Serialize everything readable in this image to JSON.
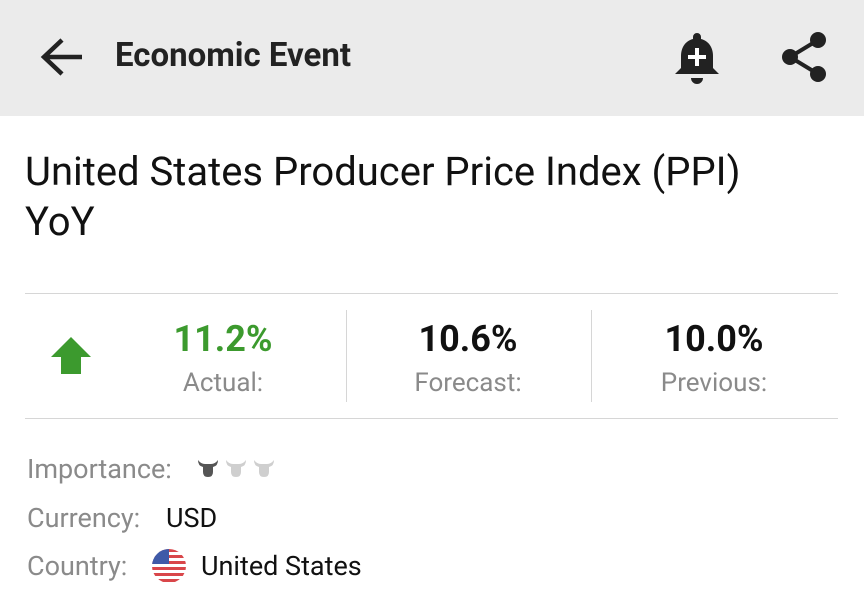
{
  "header": {
    "title": "Economic Event"
  },
  "event": {
    "title_line1": "United States Producer Price Index (PPI)",
    "title_line2": "YoY"
  },
  "stats": [
    {
      "value": "11.2%",
      "label": "Actual:"
    },
    {
      "value": "10.6%",
      "label": "Forecast:"
    },
    {
      "value": "10.0%",
      "label": "Previous:"
    }
  ],
  "details": {
    "importance_label": "Importance:",
    "importance": {
      "level": 1,
      "of": 3
    },
    "currency_label": "Currency:",
    "currency": "USD",
    "country_label": "Country:",
    "country": "United States"
  }
}
